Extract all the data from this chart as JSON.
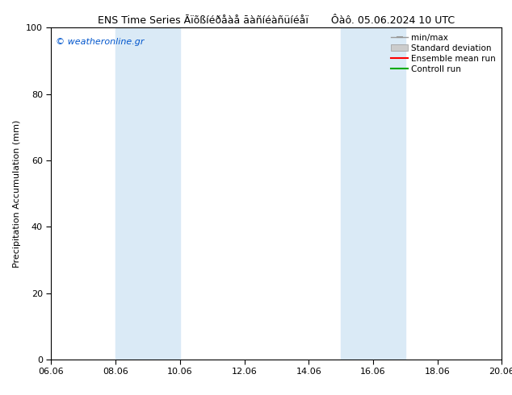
{
  "title": "ENS Time Series Āïõßíéðåàå āàñíéàñüíéåï       Ôàô. 05.06.2024 10 UTC",
  "ylabel": "Precipitation Accumulation (mm)",
  "ylim": [
    0,
    100
  ],
  "yticks": [
    0,
    20,
    40,
    60,
    80,
    100
  ],
  "x_start": 6.06,
  "x_end": 20.06,
  "xtick_labels": [
    "06.06",
    "08.06",
    "10.06",
    "12.06",
    "14.06",
    "16.06",
    "18.06",
    "20.06"
  ],
  "xtick_positions": [
    6.06,
    8.06,
    10.06,
    12.06,
    14.06,
    16.06,
    18.06,
    20.06
  ],
  "shaded_regions": [
    {
      "x_start": 8.06,
      "x_end": 10.06,
      "color": "#daeaf6"
    },
    {
      "x_start": 15.06,
      "x_end": 17.06,
      "color": "#daeaf6"
    }
  ],
  "watermark_text": "© weatheronline.gr",
  "watermark_color": "#0055cc",
  "watermark_fontsize": 8,
  "legend_labels": [
    "min/max",
    "Standard deviation",
    "Ensemble mean run",
    "Controll run"
  ],
  "legend_colors": [
    "#999999",
    "#cccccc",
    "#ff0000",
    "#00aa00"
  ],
  "bg_color": "#ffffff",
  "plot_bg_color": "#ffffff",
  "font_size_title": 9,
  "font_size_axis": 8,
  "font_size_tick": 8,
  "font_size_legend": 7.5
}
